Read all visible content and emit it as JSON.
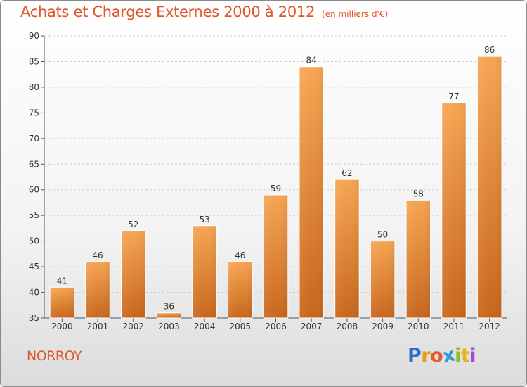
{
  "header": {
    "title": "Achats et Charges Externes 2000 à 2012",
    "subtitle": "(en milliers d'€)"
  },
  "footer": {
    "commune": "NORROY",
    "logo_letters": [
      "P",
      "r",
      "o",
      "x",
      "i",
      "t",
      "i"
    ],
    "logo_colors": [
      "#2f6fc4",
      "#e89b1c",
      "#e55a2b",
      "#2e9ad8",
      "#8cbf26",
      "#e8b21c",
      "#a64ac9"
    ]
  },
  "chart_data": {
    "type": "bar",
    "categories": [
      "2000",
      "2001",
      "2002",
      "2003",
      "2004",
      "2005",
      "2006",
      "2007",
      "2008",
      "2009",
      "2010",
      "2011",
      "2012"
    ],
    "values": [
      41,
      46,
      52,
      36,
      53,
      46,
      59,
      84,
      62,
      50,
      58,
      77,
      86
    ],
    "title": "Achats et Charges Externes 2000 à 2012",
    "ylim": [
      35,
      90
    ],
    "yticks": [
      35,
      40,
      45,
      50,
      55,
      60,
      65,
      70,
      75,
      80,
      85,
      90
    ],
    "grid": true,
    "bar_color": "#f0963c"
  }
}
